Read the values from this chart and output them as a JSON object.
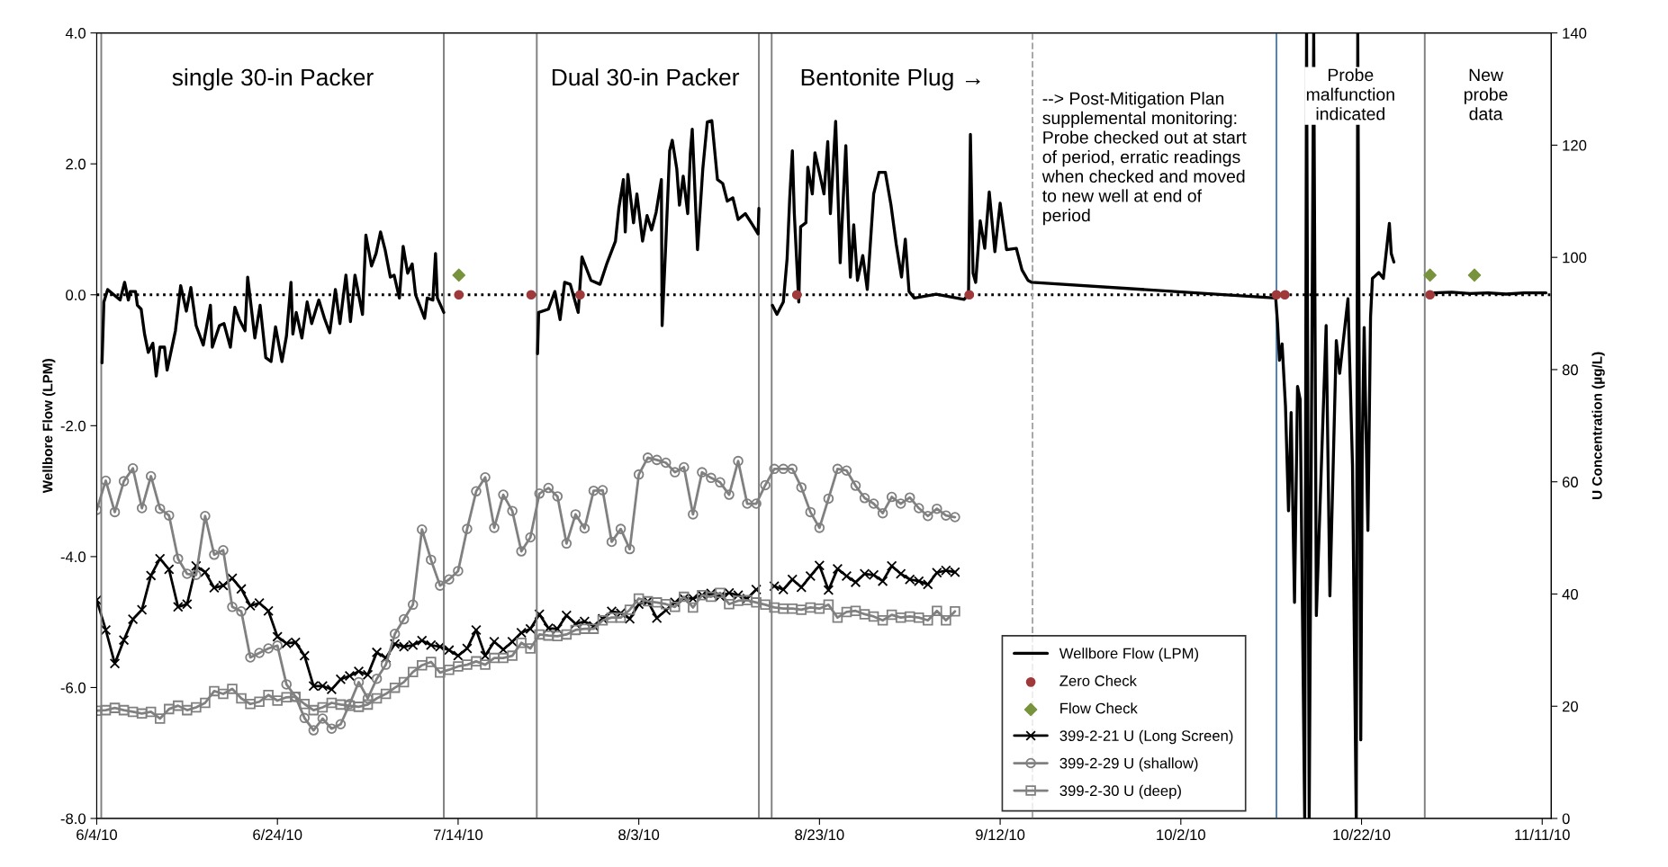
{
  "chart_data": {
    "type": "line",
    "ylabel": "Wellbore Flow (LPM)",
    "y2label": "U Concentration (µg/L)",
    "xlim": [
      "2010-06-04",
      "2010-11-12"
    ],
    "xticks": [
      {
        "value": "2010-06-04",
        "label": "6/4/10"
      },
      {
        "value": "2010-06-24",
        "label": "6/24/10"
      },
      {
        "value": "2010-07-14",
        "label": "7/14/10"
      },
      {
        "value": "2010-08-03",
        "label": "8/3/10"
      },
      {
        "value": "2010-08-23",
        "label": "8/23/10"
      },
      {
        "value": "2010-09-12",
        "label": "9/12/10"
      },
      {
        "value": "2010-10-02",
        "label": "10/2/10"
      },
      {
        "value": "2010-10-22",
        "label": "10/22/10"
      },
      {
        "value": "2010-11-11",
        "label": "11/11/10"
      }
    ],
    "ylim": [
      -8,
      4
    ],
    "yticks": [
      {
        "value": -8,
        "label": "-8.0"
      },
      {
        "value": -6,
        "label": "-6.0"
      },
      {
        "value": -4,
        "label": "-4.0"
      },
      {
        "value": -2,
        "label": "-2.0"
      },
      {
        "value": 0,
        "label": "0.0"
      },
      {
        "value": 2,
        "label": "2.0"
      },
      {
        "value": 4,
        "label": "4.0"
      }
    ],
    "y2lim": [
      0,
      140
    ],
    "y2ticks": [
      0,
      20,
      40,
      60,
      80,
      100,
      120,
      140
    ],
    "grid": false,
    "legend": "bottom right",
    "annotations": [
      "single 30-in Packer",
      "Dual 30-in Packer",
      "Bentonite Plug →",
      "--> Post-Mitigation Plan\nsupplemental monitoring:\nProbe checked out at start\nof period, erratic readings\nwhen checked and moved\nto new well at end of\nperiod",
      "Probe\nmalfunction\nindicated",
      "New\nprobe\ndata"
    ],
    "ref_lines": [
      {
        "axis": "y",
        "value": 0,
        "color": "#000000",
        "line_style": "dotted"
      },
      {
        "axis": "x",
        "value": "2010-06-04T12:00",
        "color": "#808080",
        "line_style": "solid"
      },
      {
        "axis": "x",
        "value": "2010-07-12T10:00",
        "color": "#808080",
        "line_style": "solid"
      },
      {
        "axis": "x",
        "value": "2010-07-22T17:00",
        "color": "#808080",
        "line_style": "solid"
      },
      {
        "axis": "x",
        "value": "2010-08-16T07:00",
        "color": "#808080",
        "line_style": "solid"
      },
      {
        "axis": "x",
        "value": "2010-08-17T17:00",
        "color": "#808080",
        "line_style": "solid"
      },
      {
        "axis": "x",
        "value": "2010-09-15T14:00",
        "color": "#a6a6a6",
        "line_style": "dashed"
      },
      {
        "axis": "x",
        "value": "2010-10-12T14:00",
        "color": "#4f81bd",
        "line_style": "solid"
      },
      {
        "axis": "x",
        "value": "2010-10-29T00:00",
        "color": "#808080",
        "line_style": "solid"
      }
    ],
    "x": [
      "2010-06-04",
      "2010-06-05",
      "2010-06-06",
      "2010-06-07",
      "2010-06-08",
      "2010-06-09",
      "2010-06-10",
      "2010-06-11",
      "2010-06-12",
      "2010-06-13",
      "2010-06-14",
      "2010-06-15",
      "2010-06-16",
      "2010-06-17",
      "2010-06-18",
      "2010-06-19",
      "2010-06-20",
      "2010-06-21",
      "2010-06-22",
      "2010-06-23",
      "2010-06-24",
      "2010-06-25",
      "2010-06-26",
      "2010-06-27",
      "2010-06-28",
      "2010-06-29",
      "2010-06-30",
      "2010-07-01",
      "2010-07-02",
      "2010-07-03",
      "2010-07-04",
      "2010-07-05",
      "2010-07-06",
      "2010-07-07",
      "2010-07-08",
      "2010-07-09",
      "2010-07-10",
      "2010-07-11",
      "2010-07-12",
      "2010-07-13",
      "2010-07-14",
      "2010-07-15",
      "2010-07-16",
      "2010-07-17",
      "2010-07-18",
      "2010-07-19",
      "2010-07-20",
      "2010-07-21",
      "2010-07-22",
      "2010-07-23",
      "2010-07-24",
      "2010-07-25",
      "2010-07-26",
      "2010-07-27",
      "2010-07-28",
      "2010-07-29",
      "2010-07-30",
      "2010-07-31",
      "2010-08-01",
      "2010-08-02",
      "2010-08-03",
      "2010-08-04",
      "2010-08-05",
      "2010-08-06",
      "2010-08-07",
      "2010-08-08",
      "2010-08-09",
      "2010-08-10",
      "2010-08-11",
      "2010-08-12",
      "2010-08-13",
      "2010-08-14",
      "2010-08-15",
      "2010-08-16",
      "2010-08-17",
      "2010-08-18",
      "2010-08-19",
      "2010-08-20",
      "2010-08-21",
      "2010-08-22",
      "2010-08-23",
      "2010-08-24",
      "2010-08-25",
      "2010-08-26",
      "2010-08-27",
      "2010-08-28",
      "2010-08-29",
      "2010-08-30",
      "2010-08-31",
      "2010-09-01",
      "2010-09-02",
      "2010-09-03",
      "2010-09-04",
      "2010-09-05",
      "2010-09-06",
      "2010-09-07"
    ],
    "series": [
      {
        "name": "Wellbore Flow (LPM)",
        "color": "#000000",
        "marker": "none",
        "x": [
          "2010-06-04T14:00",
          "2010-06-04T19:00",
          "2010-06-05T05:00",
          "2010-06-06T14:00",
          "2010-06-07T02:00",
          "2010-06-07T12:00",
          "2010-06-07T17:00",
          "2010-06-08T07:00",
          "2010-06-08T12:00",
          "2010-06-08T22:00",
          "2010-06-09T07:00",
          "2010-06-09T17:00",
          "2010-06-10T05:00",
          "2010-06-10T14:00",
          "2010-06-11T00:00",
          "2010-06-11T12:00",
          "2010-06-11T19:00",
          "2010-06-12T17:00",
          "2010-06-13T07:00",
          "2010-06-13T22:00",
          "2010-06-14T10:00",
          "2010-06-15T00:00",
          "2010-06-15T19:00",
          "2010-06-16T14:00",
          "2010-06-16T19:00",
          "2010-06-17T14:00",
          "2010-06-18T02:00",
          "2010-06-18T19:00",
          "2010-06-19T07:00",
          "2010-06-19T19:00",
          "2010-06-20T10:00",
          "2010-06-20T17:00",
          "2010-06-21T12:00",
          "2010-06-22T02:00",
          "2010-06-22T17:00",
          "2010-06-23T07:00",
          "2010-06-23T19:00",
          "2010-06-24T12:00",
          "2010-06-25T00:00",
          "2010-06-25T12:00",
          "2010-06-25T17:00",
          "2010-06-26T02:00",
          "2010-06-26T17:00",
          "2010-06-27T07:00",
          "2010-06-27T19:00",
          "2010-06-28T14:00",
          "2010-06-29T05:00",
          "2010-06-29T19:00",
          "2010-06-30T10:00",
          "2010-06-30T22:00",
          "2010-07-01T14:00",
          "2010-07-02T02:00",
          "2010-07-02T14:00",
          "2010-07-03T10:00",
          "2010-07-03T19:00",
          "2010-07-04T10:00",
          "2010-07-04T22:00",
          "2010-07-05T10:00",
          "2010-07-05T22:00",
          "2010-07-06T12:00",
          "2010-07-06T22:00",
          "2010-07-07T12:00",
          "2010-07-07T22:00",
          "2010-07-08T10:00",
          "2010-07-08T22:00",
          "2010-07-09T07:00",
          "2010-07-10T07:00",
          "2010-07-10T14:00",
          "2010-07-11T05:00",
          "2010-07-11T12:00",
          "2010-07-11T17:00",
          "2010-07-12T10:00",
          "2010-07-17T00:00",
          "2010-07-22T19:00",
          "2010-07-22T22:00",
          "2010-07-24T00:00",
          "2010-07-24T17:00",
          "2010-07-25T07:00",
          "2010-07-25T19:00",
          "2010-07-26T10:00",
          "2010-07-27T07:00",
          "2010-07-27T17:00",
          "2010-07-28T17:00",
          "2010-07-29T17:00",
          "2010-07-30T12:00",
          "2010-07-31T10:00",
          "2010-07-31T19:00",
          "2010-08-01T07:00",
          "2010-08-01T12:00",
          "2010-08-01T19:00",
          "2010-08-02T10:00",
          "2010-08-02T19:00",
          "2010-08-03T10:00",
          "2010-08-03T22:00",
          "2010-08-04T10:00",
          "2010-08-04T22:00",
          "2010-08-05T12:00",
          "2010-08-05T14:00",
          "2010-08-06T00:00",
          "2010-08-06T10:00",
          "2010-08-06T17:00",
          "2010-08-07T05:00",
          "2010-08-07T12:00",
          "2010-08-07T22:00",
          "2010-08-08T10:00",
          "2010-08-08T17:00",
          "2010-08-08T22:00",
          "2010-08-09T12:00",
          "2010-08-10T02:00",
          "2010-08-10T14:00",
          "2010-08-11T02:00",
          "2010-08-11T17:00",
          "2010-08-12T07:00",
          "2010-08-12T19:00",
          "2010-08-13T10:00",
          "2010-08-14T00:00",
          "2010-08-14T19:00",
          "2010-08-15T14:00",
          "2010-08-16T05:00",
          "2010-08-16T07:00",
          "2010-08-17T00:00",
          "2010-08-17T19:00",
          "2010-08-18T07:00",
          "2010-08-19T00:00",
          "2010-08-19T10:00",
          "2010-08-19T17:00",
          "2010-08-20T00:00",
          "2010-08-20T05:00",
          "2010-08-20T17:00",
          "2010-08-20T22:00",
          "2010-08-21T12:00",
          "2010-08-21T17:00",
          "2010-08-22T05:00",
          "2010-08-22T12:00",
          "2010-08-23T02:00",
          "2010-08-23T12:00",
          "2010-08-23T22:00",
          "2010-08-24T05:00",
          "2010-08-24T19:00",
          "2010-08-25T07:00",
          "2010-08-25T22:00",
          "2010-08-26T10:00",
          "2010-08-26T19:00",
          "2010-08-27T05:00",
          "2010-08-27T19:00",
          "2010-08-28T07:00",
          "2010-08-29T00:00",
          "2010-08-29T14:00",
          "2010-08-30T07:00",
          "2010-08-30T22:00",
          "2010-08-31T12:00",
          "2010-09-01T02:00",
          "2010-09-01T12:00",
          "2010-09-01T22:00",
          "2010-09-02T12:00",
          "2010-09-04T22:00",
          "2010-09-08T00:00",
          "2010-09-08T12:00",
          "2010-09-08T17:00",
          "2010-09-09T00:00",
          "2010-09-09T07:00",
          "2010-09-09T19:00",
          "2010-09-10T07:00",
          "2010-09-10T19:00",
          "2010-09-11T10:00",
          "2010-09-12T00:00",
          "2010-09-12T17:00",
          "2010-09-13T19:00",
          "2010-09-14T10:00",
          "2010-09-15T02:00",
          "2010-09-15T12:00",
          "2010-10-12T12:00",
          "2010-10-12T17:00",
          "2010-10-12T22:00",
          "2010-10-13T05:00",
          "2010-10-13T14:00",
          "2010-10-13T22:00",
          "2010-10-14T05:00",
          "2010-10-14T14:00",
          "2010-10-14T22:00",
          "2010-10-15T05:00",
          "2010-10-15T17:00",
          "2010-10-15T22:00",
          "2010-10-16T05:00",
          "2010-10-16T17:00",
          "2010-10-17T00:00",
          "2010-10-17T14:00",
          "2010-10-18T02:00",
          "2010-10-18T12:00",
          "2010-10-19T05:00",
          "2010-10-19T14:00",
          "2010-10-20T12:00",
          "2010-10-21T00:00",
          "2010-10-21T10:00",
          "2010-10-21T14:00",
          "2010-10-21T22:00",
          "2010-10-22T02:00",
          "2010-10-22T07:00",
          "2010-10-22T17:00",
          "2010-10-23T00:00",
          "2010-10-23T05:00",
          "2010-10-23T22:00",
          "2010-10-24T10:00",
          "2010-10-25T02:00",
          "2010-10-25T07:00",
          "2010-10-25T14:00",
          "2010-10-27T00:00",
          "2010-10-30T00:00",
          "2010-11-01T00:00",
          "2010-11-03T00:00",
          "2010-11-05T00:00",
          "2010-11-07T00:00",
          "2010-11-09T00:00",
          "2010-11-11T10:00"
        ],
        "values": [
          -1.04,
          -0.11,
          0.08,
          -0.08,
          0.19,
          -0.08,
          0.05,
          0.05,
          -0.16,
          -0.22,
          -0.6,
          -0.88,
          -0.74,
          -1.24,
          -0.8,
          -0.8,
          -1.15,
          -0.55,
          0.14,
          -0.25,
          0.11,
          -0.47,
          -0.77,
          -0.16,
          -0.8,
          -0.47,
          -0.44,
          -0.8,
          -0.19,
          -0.38,
          -0.55,
          0.27,
          -0.66,
          -0.16,
          -0.96,
          -1.02,
          -0.49,
          -1.02,
          -0.63,
          0.19,
          -0.6,
          -0.27,
          -0.66,
          -0.11,
          -0.44,
          -0.08,
          -0.36,
          -0.58,
          0.08,
          -0.44,
          0.3,
          -0.41,
          0.3,
          -0.3,
          0.91,
          0.44,
          0.63,
          0.96,
          0.69,
          0.27,
          0.3,
          -0.05,
          0.74,
          0.33,
          0.47,
          0,
          -0.36,
          -0.05,
          -0.08,
          0.63,
          -0.05,
          -0.27,
          null,
          -0.9,
          -0.27,
          -0.22,
          0.05,
          -0.38,
          0.19,
          0.16,
          -0.27,
          0.58,
          0.22,
          0.16,
          0.49,
          0.82,
          1.32,
          1.76,
          0.96,
          1.84,
          1.1,
          1.54,
          0.82,
          1.21,
          0.99,
          1.26,
          1.76,
          -0.47,
          0.82,
          2.2,
          2.36,
          1.92,
          1.37,
          1.81,
          1.24,
          2.17,
          2.53,
          0.69,
          1.92,
          2.64,
          2.66,
          1.76,
          1.7,
          1.43,
          1.48,
          1.15,
          1.24,
          1.07,
          0.93,
          1.32,
          null,
          -0.16,
          -0.3,
          -0.11,
          0.55,
          1.48,
          2.2,
          1.26,
          -0.11,
          1.04,
          1.1,
          1.95,
          1.54,
          2.17,
          1.81,
          1.54,
          2.34,
          1.24,
          2.65,
          0.49,
          2.28,
          0.27,
          1.07,
          0.22,
          0.6,
          0.08,
          1.54,
          1.87,
          1.87,
          1.37,
          0.77,
          0.27,
          0.85,
          0.05,
          -0.05,
          0.01,
          -0.07,
          0,
          2.45,
          0.33,
          0.19,
          1.13,
          0.71,
          1.57,
          0.66,
          1.4,
          0.69,
          0.71,
          0.38,
          0.22,
          0.19,
          -0.05,
          -0.44,
          -1.0,
          -0.75,
          -1.7,
          -3.3,
          -1.8,
          -4.7,
          -1.4,
          -1.6,
          -8.0,
          4.0,
          -8.0,
          4.0,
          -4.9,
          -2.5,
          -0.47,
          -4.6,
          -0.7,
          -1.2,
          -0.06,
          -2.6,
          -8.0,
          4.0,
          -6.8,
          -2.3,
          -0.5,
          -3.6,
          -0.34,
          0.25,
          0.34,
          0.25,
          1.09,
          0.63,
          0.5,
          null,
          0.03,
          0.04,
          0.02,
          0.03,
          0.01,
          0.03,
          0.03
        ]
      },
      {
        "name": "Zero Check",
        "type": "scatter",
        "color": "#a0393a",
        "marker": "circle",
        "x": [
          "2010-07-14T02:00",
          "2010-07-22T02:00",
          "2010-07-27T12:00",
          "2010-08-20T12:00",
          "2010-09-08T14:00",
          "2010-10-12T14:00",
          "2010-10-13T12:00",
          "2010-10-29T14:00"
        ],
        "values": [
          0,
          0,
          0,
          0,
          0,
          0,
          0,
          0
        ]
      },
      {
        "name": "Flow Check",
        "type": "scatter",
        "color": "#77933c",
        "marker": "diamond",
        "x": [
          "2010-07-14T02:00",
          "2010-10-29T14:00",
          "2010-11-03T12:00"
        ],
        "values": [
          0.3,
          0.3,
          0.3
        ]
      },
      {
        "name": "399-2-21 U (Long Screen)",
        "axis": "y2",
        "color": "#000000",
        "marker": "cross",
        "values": [
          38.9,
          33.6,
          27.6,
          31.8,
          35.5,
          37.2,
          43.3,
          46.3,
          44.4,
          37.7,
          38.2,
          45.0,
          43.9,
          41.1,
          41.5,
          42.8,
          40.9,
          37.9,
          38.4,
          37.0,
          32.4,
          31.2,
          31.4,
          29.0,
          23.6,
          23.6,
          23.0,
          24.8,
          25.4,
          26.2,
          25.6,
          29.6,
          28.6,
          31.1,
          30.6,
          30.9,
          31.7,
          30.9,
          30.6,
          30.0,
          29.0,
          30.3,
          33.6,
          29.0,
          31.5,
          30.1,
          31.5,
          33.1,
          33.8,
          36.4,
          33.9,
          33.8,
          36.2,
          34.7,
          35.1,
          34.3,
          35.6,
          36.9,
          36.6,
          35.6,
          38.2,
          38.7,
          35.7,
          37.1,
          38.5,
          39.2,
          39.2,
          39.8,
          40.1,
          39.6,
          40.2,
          39.8,
          39.2,
          40.8,
          null,
          41.4,
          40.8,
          42.6,
          41.2,
          43.2,
          45.1,
          40.7,
          44.5,
          43.2,
          42.1,
          43.6,
          43.4,
          42.3,
          45.0,
          43.6,
          42.6,
          42.3,
          41.7,
          43.8,
          44.2,
          43.9
        ]
      },
      {
        "name": "399-2-29 U (shallow)",
        "axis": "y2",
        "color": "#808080",
        "marker": "circle",
        "values": [
          55.0,
          60.2,
          54.6,
          60.1,
          62.4,
          55.3,
          61.0,
          55.2,
          54.0,
          46.3,
          43.6,
          43.4,
          53.9,
          47.0,
          47.8,
          37.7,
          36.9,
          28.7,
          29.5,
          30.3,
          30.8,
          23.9,
          21.7,
          17.9,
          15.7,
          17.8,
          16.0,
          16.8,
          20.4,
          24.3,
          21.4,
          24.9,
          27.4,
          32.9,
          35.5,
          38.1,
          51.5,
          46.1,
          41.5,
          42.6,
          44.1,
          51.6,
          58.3,
          60.8,
          51.8,
          57.7,
          54.8,
          47.6,
          50.1,
          57.9,
          58.9,
          57.4,
          49.0,
          54.2,
          51.7,
          58.4,
          58.5,
          49.3,
          51.6,
          48.0,
          61.3,
          64.3,
          63.9,
          63.4,
          61.7,
          62.6,
          54.2,
          61.7,
          60.7,
          59.9,
          57.7,
          63.7,
          56.1,
          56.1,
          59.4,
          62.3,
          62.3,
          62.3,
          59.0,
          54.6,
          51.8,
          57.0,
          62.3,
          62.0,
          59.3,
          57.1,
          56.1,
          54.4,
          57.3,
          56.1,
          57.2,
          55.3,
          53.9,
          55.2,
          54.0,
          53.7
        ]
      },
      {
        "name": "399-2-30 U (deep)",
        "axis": "y2",
        "color": "#808080",
        "marker": "square",
        "values": [
          19.2,
          19.3,
          19.7,
          19.3,
          19.0,
          18.7,
          19.0,
          17.8,
          19.5,
          20.1,
          19.3,
          19.8,
          20.6,
          22.7,
          22.2,
          23.1,
          21.4,
          20.4,
          20.8,
          22.0,
          21.0,
          21.6,
          21.7,
          20.4,
          19.3,
          19.8,
          20.6,
          20.3,
          20.1,
          19.9,
          20.3,
          21.4,
          22.2,
          23.3,
          24.3,
          26.1,
          27.3,
          27.9,
          26.0,
          26.5,
          27.1,
          27.4,
          28.0,
          27.4,
          28.6,
          28.6,
          29.0,
          31.3,
          30.3,
          32.8,
          32.6,
          32.5,
          32.8,
          33.6,
          33.8,
          33.8,
          35.3,
          35.8,
          35.8,
          37.2,
          39.2,
          38.7,
          38.5,
          38.2,
          37.7,
          39.5,
          37.6,
          39.8,
          39.5,
          40.2,
          38.2,
          38.8,
          38.9,
          38.5,
          38.1,
          37.6,
          37.4,
          37.4,
          37.2,
          37.6,
          37.4,
          38.1,
          35.8,
          36.8,
          37.0,
          36.4,
          36.0,
          35.3,
          36.3,
          35.8,
          36.0,
          35.8,
          35.3,
          37.0,
          35.3,
          36.9
        ]
      }
    ]
  }
}
